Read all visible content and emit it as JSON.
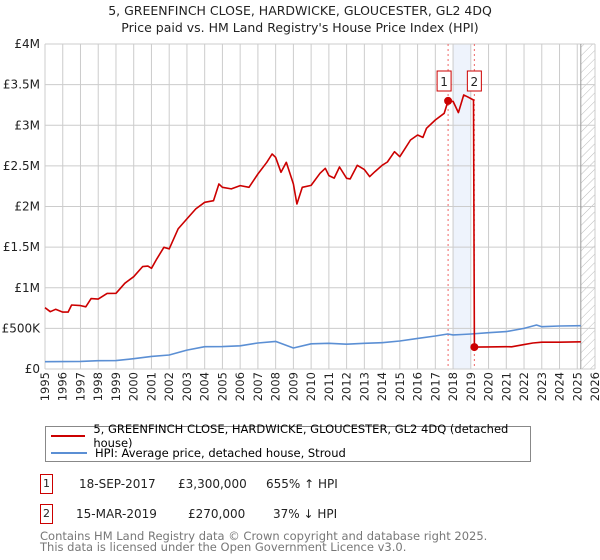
{
  "title": "5, GREENFINCH CLOSE, HARDWICKE, GLOUCESTER, GL2 4DQ",
  "subtitle": "Price paid vs. HM Land Registry's House Price Index (HPI)",
  "colors": {
    "property": "#cc0000",
    "hpi": "#5b8fd4",
    "grid": "#cccccc",
    "band": "#eef3fc"
  },
  "chart_data": {
    "type": "line",
    "xlim": [
      1995,
      2026
    ],
    "ylim": [
      0,
      4000000
    ],
    "y_ticks": [
      0,
      500000,
      1000000,
      1500000,
      2000000,
      2500000,
      3000000,
      3500000,
      4000000
    ],
    "y_tick_labels": [
      "£0",
      "£500K",
      "£1M",
      "£1.5M",
      "£2M",
      "£2.5M",
      "£3M",
      "£3.5M",
      "£4M"
    ],
    "x_ticks": [
      "1995",
      "1996",
      "1997",
      "1998",
      "1999",
      "2000",
      "2001",
      "2002",
      "2003",
      "2004",
      "2005",
      "2006",
      "2007",
      "2008",
      "2009",
      "2010",
      "2011",
      "2012",
      "2013",
      "2014",
      "2015",
      "2016",
      "2017",
      "2018",
      "2019",
      "2020",
      "2021",
      "2022",
      "2023",
      "2024",
      "2025",
      "2026"
    ],
    "grid": true,
    "highlight_band": [
      2018.0,
      2019.0
    ],
    "forecast_hatch_from": 2025.2,
    "series": [
      {
        "name": "5, GREENFINCH CLOSE, HARDWICKE, GLOUCESTER, GL2 4DQ (detached house)",
        "points": [
          [
            1995,
            755000
          ],
          [
            1995.3,
            705000
          ],
          [
            1995.6,
            735000
          ],
          [
            1996,
            700000
          ],
          [
            1996.3,
            700000
          ],
          [
            1996.5,
            788000
          ],
          [
            1997,
            780000
          ],
          [
            1997.3,
            765000
          ],
          [
            1997.6,
            867000
          ],
          [
            1998,
            860000
          ],
          [
            1998.5,
            930000
          ],
          [
            1999,
            932000
          ],
          [
            1999.5,
            1055000
          ],
          [
            2000,
            1136000
          ],
          [
            2000.5,
            1260000
          ],
          [
            2000.8,
            1266000
          ],
          [
            2001,
            1240000
          ],
          [
            2001.3,
            1355000
          ],
          [
            2001.7,
            1498000
          ],
          [
            2002,
            1478000
          ],
          [
            2002.5,
            1724000
          ],
          [
            2003,
            1847000
          ],
          [
            2003.5,
            1970000
          ],
          [
            2004,
            2052000
          ],
          [
            2004.5,
            2072000
          ],
          [
            2004.8,
            2277000
          ],
          [
            2005,
            2236000
          ],
          [
            2005.5,
            2216000
          ],
          [
            2006,
            2257000
          ],
          [
            2006.5,
            2236000
          ],
          [
            2007,
            2400000
          ],
          [
            2007.5,
            2544000
          ],
          [
            2007.8,
            2646000
          ],
          [
            2008,
            2605000
          ],
          [
            2008.3,
            2421000
          ],
          [
            2008.6,
            2544000
          ],
          [
            2009,
            2277000
          ],
          [
            2009.2,
            2031000
          ],
          [
            2009.5,
            2236000
          ],
          [
            2010,
            2260000
          ],
          [
            2010.5,
            2409000
          ],
          [
            2010.8,
            2470000
          ],
          [
            2011,
            2380000
          ],
          [
            2011.3,
            2350000
          ],
          [
            2011.6,
            2486000
          ],
          [
            2012,
            2347000
          ],
          [
            2012.2,
            2340000
          ],
          [
            2012.6,
            2507000
          ],
          [
            2013,
            2454000
          ],
          [
            2013.3,
            2368000
          ],
          [
            2013.6,
            2429000
          ],
          [
            2014,
            2507000
          ],
          [
            2014.3,
            2548000
          ],
          [
            2014.7,
            2675000
          ],
          [
            2015,
            2613000
          ],
          [
            2015.3,
            2716000
          ],
          [
            2015.6,
            2819000
          ],
          [
            2016,
            2880000
          ],
          [
            2016.3,
            2851000
          ],
          [
            2016.5,
            2962000
          ],
          [
            2017,
            3065000
          ],
          [
            2017.5,
            3147000
          ],
          [
            2017.72,
            3300000
          ],
          [
            2018,
            3294000
          ],
          [
            2018.3,
            3156000
          ],
          [
            2018.6,
            3372000
          ],
          [
            2018.8,
            3352000
          ],
          [
            2019.15,
            3311000
          ],
          [
            2019.2,
            270000
          ],
          [
            2020,
            272000
          ],
          [
            2021,
            275000
          ],
          [
            2021.3,
            273000
          ],
          [
            2022,
            300000
          ],
          [
            2022.5,
            320000
          ],
          [
            2023,
            330000
          ],
          [
            2024,
            330000
          ],
          [
            2025.2,
            335000
          ]
        ]
      },
      {
        "name": "HPI: Average price, detached house, Stroud",
        "points": [
          [
            1995,
            90000
          ],
          [
            1997,
            94000
          ],
          [
            1998,
            102000
          ],
          [
            1999,
            104000
          ],
          [
            2000,
            127000
          ],
          [
            2001,
            155000
          ],
          [
            2002,
            172000
          ],
          [
            2003,
            233000
          ],
          [
            2004,
            274000
          ],
          [
            2005,
            276000
          ],
          [
            2006,
            285000
          ],
          [
            2007,
            320000
          ],
          [
            2008,
            340000
          ],
          [
            2009,
            258000
          ],
          [
            2010,
            310000
          ],
          [
            2011,
            316000
          ],
          [
            2012,
            305000
          ],
          [
            2013,
            316000
          ],
          [
            2014,
            324000
          ],
          [
            2015,
            345000
          ],
          [
            2016,
            377000
          ],
          [
            2017,
            406000
          ],
          [
            2017.7,
            431000
          ],
          [
            2018,
            420000
          ],
          [
            2018.5,
            425000
          ],
          [
            2019,
            431000
          ],
          [
            2020,
            447000
          ],
          [
            2021,
            460000
          ],
          [
            2022,
            500000
          ],
          [
            2022.7,
            541000
          ],
          [
            2023,
            521000
          ],
          [
            2024,
            529000
          ],
          [
            2025.2,
            533000
          ]
        ]
      }
    ],
    "sales": [
      {
        "label": "1",
        "x": 2017.72,
        "value": 3300000
      },
      {
        "label": "2",
        "x": 2019.2,
        "value": 270000
      }
    ]
  },
  "legend": {
    "property": "5, GREENFINCH CLOSE, HARDWICKE, GLOUCESTER, GL2 4DQ (detached house)",
    "hpi": "HPI: Average price, detached house, Stroud"
  },
  "transactions": [
    {
      "num": "1",
      "date": "18-SEP-2017",
      "price": "£3,300,000",
      "hpi": "655% ↑ HPI"
    },
    {
      "num": "2",
      "date": "15-MAR-2019",
      "price": "£270,000",
      "hpi": "37% ↓ HPI"
    }
  ],
  "footer": {
    "line1": "Contains HM Land Registry data © Crown copyright and database right 2025.",
    "line2": "This data is licensed under the Open Government Licence v3.0."
  }
}
